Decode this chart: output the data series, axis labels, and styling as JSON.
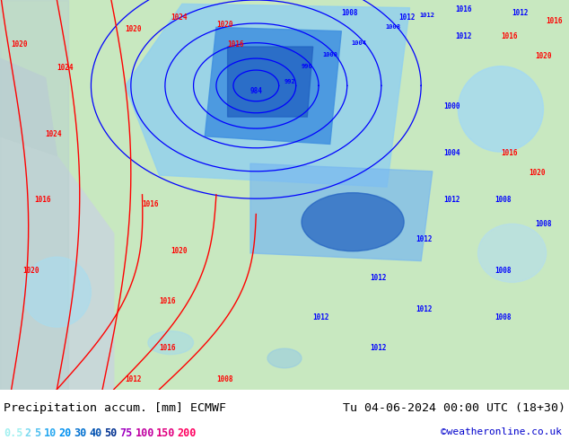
{
  "title_left": "Precipitation accum. [mm] ECMWF",
  "title_right": "Tu 04-06-2024 00:00 UTC (18+30)",
  "credit": "©weatheronline.co.uk",
  "legend_values": [
    "0.5",
    "2",
    "5",
    "10",
    "20",
    "30",
    "40",
    "50",
    "75",
    "100",
    "150",
    "200"
  ],
  "legend_colors": [
    "#a0f0f0",
    "#78d8f0",
    "#50c0f0",
    "#28a8f0",
    "#0090f0",
    "#0070d0",
    "#0050b0",
    "#003090",
    "#a000c0",
    "#c000a0",
    "#e00080",
    "#ff0060"
  ],
  "bg_color": "#e8f8e8",
  "map_bg": "#c8e8c0",
  "bottom_bar_color": "#ffffff",
  "text_color": "#000000",
  "credit_color": "#0000cc",
  "figsize": [
    6.34,
    4.9
  ],
  "dpi": 100
}
